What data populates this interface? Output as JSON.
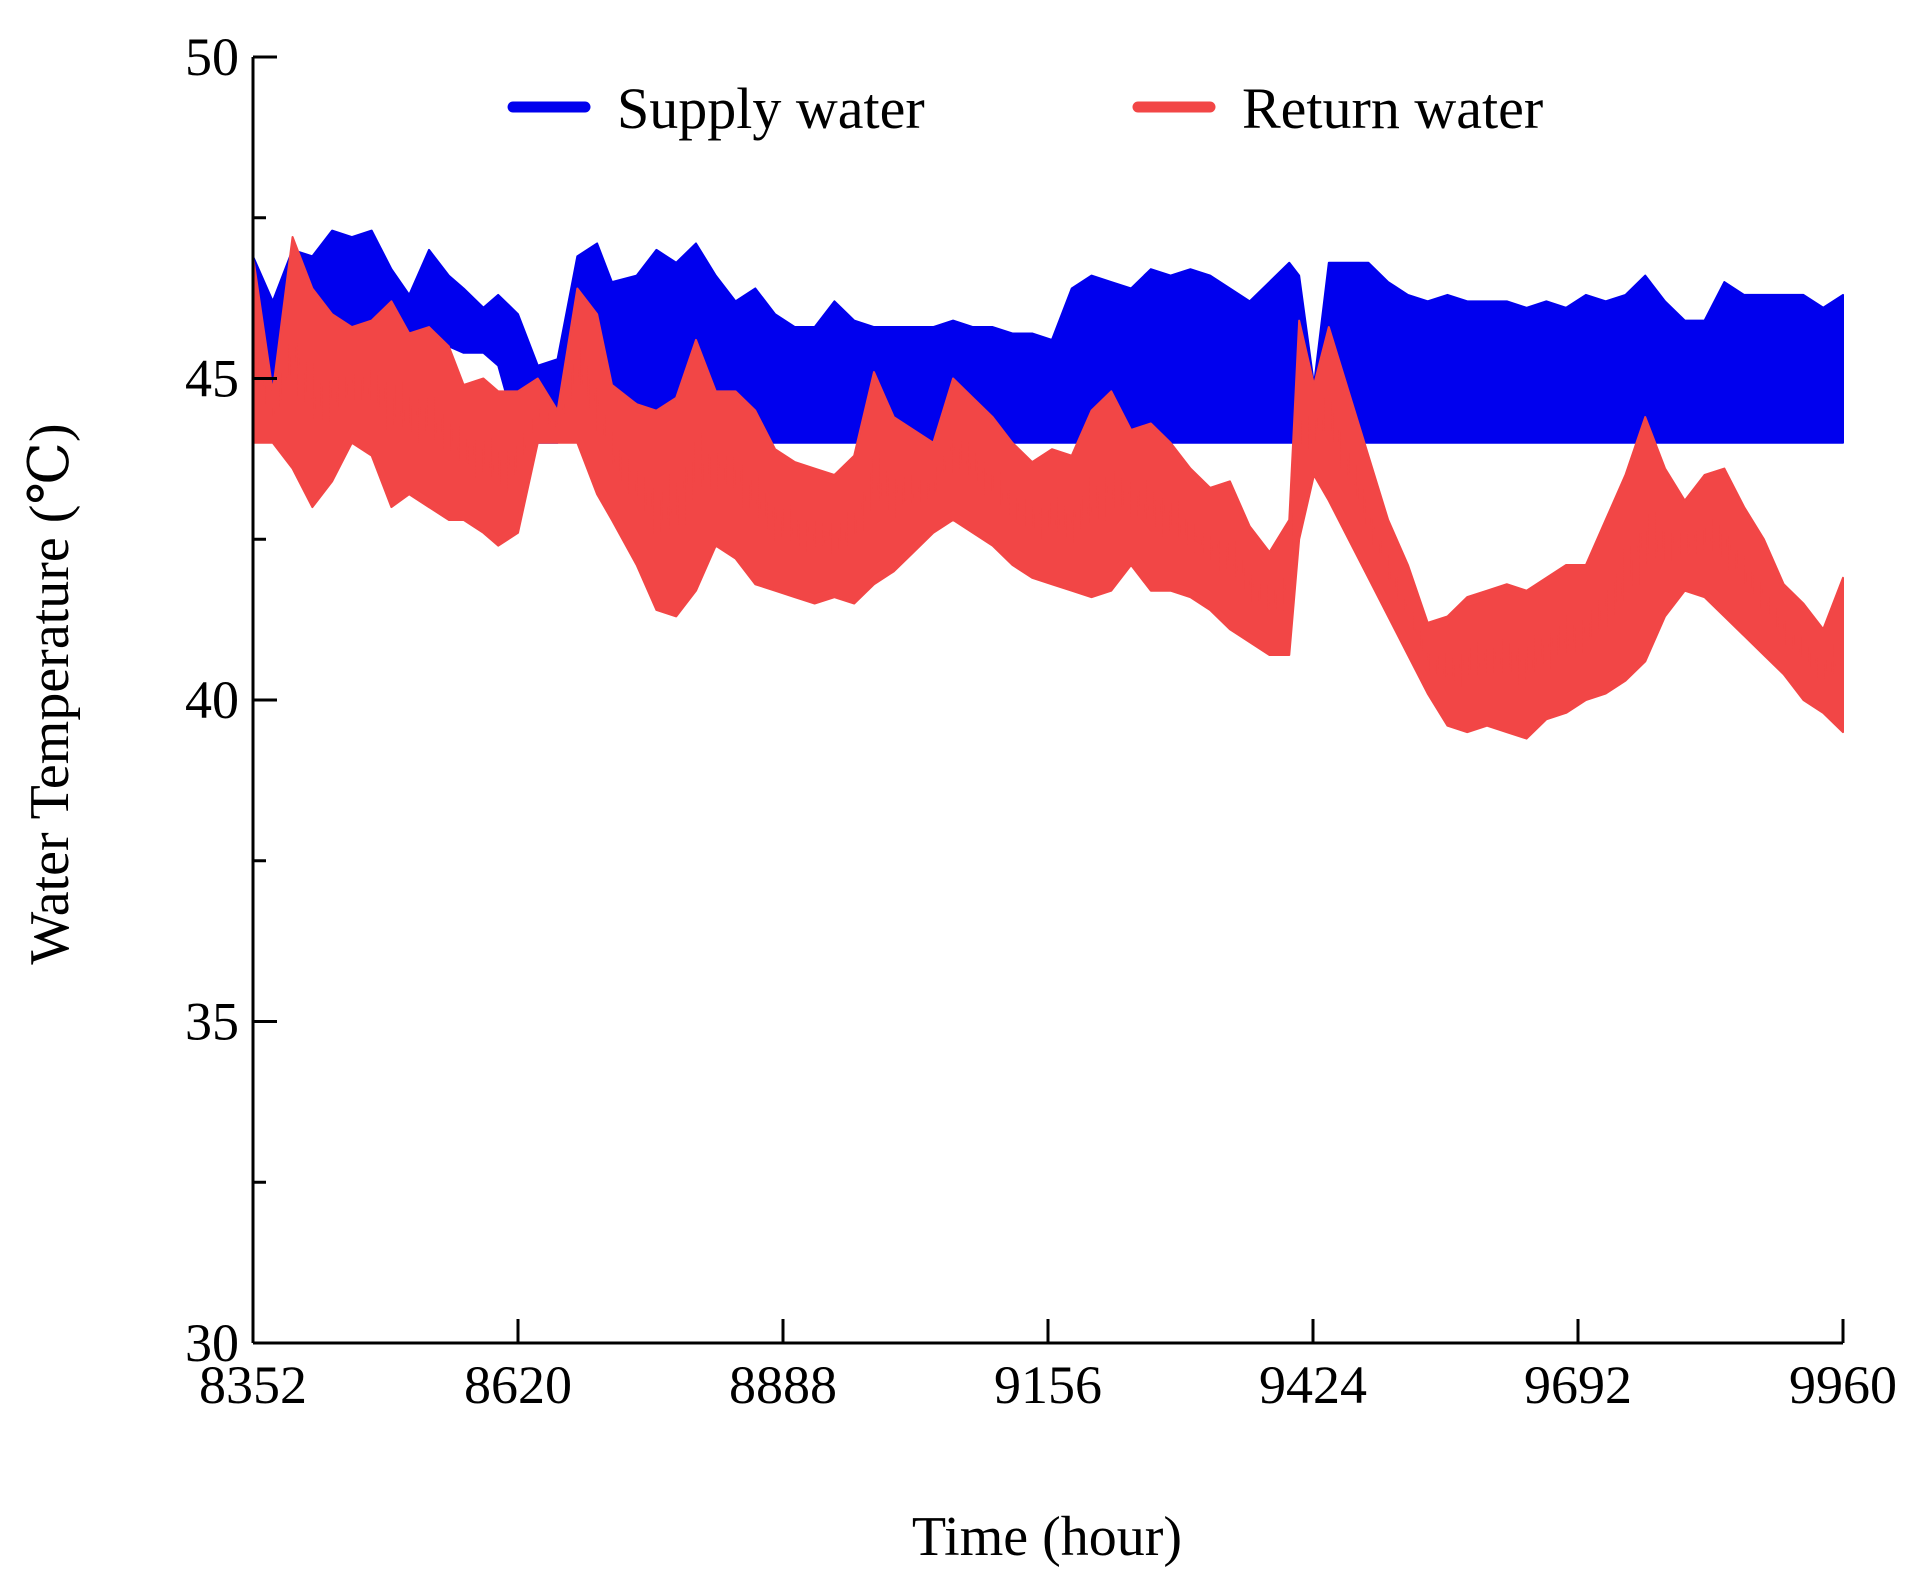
{
  "chart_data": {
    "type": "line",
    "title": "",
    "xlabel": "Time (hour)",
    "ylabel": "Water Temperature (℃)",
    "xlim": [
      8352,
      9960
    ],
    "ylim": [
      30,
      50
    ],
    "x_ticks": [
      8352,
      8620,
      8888,
      9156,
      9424,
      9692,
      9960
    ],
    "x_tick_labels": [
      "8352",
      "8620",
      "8888",
      "9156",
      "9424",
      "9692",
      "9960"
    ],
    "y_ticks": [
      30,
      35,
      40,
      45,
      50
    ],
    "y_tick_labels": [
      "30",
      "35",
      "40",
      "45",
      "50"
    ],
    "y_minor_ticks": [
      32.5,
      37.5,
      42.5,
      47.5
    ],
    "legend_position": "top",
    "series": [
      {
        "name": "Supply water",
        "color": "#0000ee",
        "style": "band",
        "x": [
          8352,
          8372,
          8392,
          8412,
          8432,
          8452,
          8472,
          8492,
          8510,
          8530,
          8550,
          8565,
          8585,
          8600,
          8620,
          8640,
          8660,
          8680,
          8700,
          8715,
          8740,
          8760,
          8780,
          8800,
          8820,
          8840,
          8860,
          8880,
          8900,
          8920,
          8940,
          8960,
          8980,
          9000,
          9020,
          9040,
          9060,
          9080,
          9100,
          9120,
          9140,
          9160,
          9180,
          9200,
          9220,
          9240,
          9260,
          9280,
          9300,
          9320,
          9340,
          9360,
          9380,
          9400,
          9410,
          9425,
          9440,
          9460,
          9480,
          9500,
          9520,
          9540,
          9560,
          9580,
          9600,
          9620,
          9640,
          9660,
          9680,
          9700,
          9720,
          9740,
          9760,
          9780,
          9800,
          9820,
          9840,
          9860,
          9880,
          9900,
          9920,
          9940,
          9960
        ],
        "upper": [
          46.9,
          46.2,
          47.0,
          46.9,
          47.3,
          47.2,
          47.3,
          46.7,
          46.3,
          47.0,
          46.6,
          46.4,
          46.1,
          46.3,
          46.0,
          45.2,
          45.3,
          46.9,
          47.1,
          46.5,
          46.6,
          47.0,
          46.8,
          47.1,
          46.6,
          46.2,
          46.4,
          46.0,
          45.8,
          45.8,
          46.2,
          45.9,
          45.8,
          45.8,
          45.8,
          45.8,
          45.9,
          45.8,
          45.8,
          45.7,
          45.7,
          45.6,
          46.4,
          46.6,
          46.5,
          46.4,
          46.7,
          46.6,
          46.7,
          46.6,
          46.4,
          46.2,
          46.5,
          46.8,
          46.6,
          44.9,
          46.8,
          46.8,
          46.8,
          46.5,
          46.3,
          46.2,
          46.3,
          46.2,
          46.2,
          46.2,
          46.1,
          46.2,
          46.1,
          46.3,
          46.2,
          46.3,
          46.6,
          46.2,
          45.9,
          45.9,
          46.5,
          46.3,
          46.3,
          46.3,
          46.3,
          46.1,
          46.3
        ],
        "lower": [
          44.0,
          44.2,
          44.0,
          43.9,
          44.0,
          44.0,
          44.6,
          45.2,
          45.3,
          45.6,
          45.5,
          45.4,
          45.4,
          45.2,
          44.1,
          44.0,
          44.0,
          44.3,
          44.4,
          44.5,
          44.4,
          44.1,
          44.0,
          44.0,
          44.0,
          44.0,
          44.0,
          44.0,
          44.0,
          44.0,
          44.0,
          44.0,
          44.0,
          44.0,
          44.0,
          44.0,
          44.0,
          44.0,
          44.0,
          44.0,
          44.0,
          44.0,
          44.0,
          44.0,
          44.0,
          44.0,
          44.0,
          44.0,
          44.0,
          44.0,
          44.0,
          44.0,
          44.0,
          44.0,
          44.0,
          44.0,
          44.0,
          44.0,
          44.0,
          44.0,
          44.0,
          44.0,
          44.0,
          44.0,
          44.0,
          44.0,
          44.0,
          44.0,
          44.0,
          44.0,
          44.0,
          44.0,
          44.0,
          44.0,
          44.0,
          44.0,
          44.0,
          44.0,
          44.0,
          44.0,
          44.0,
          44.0,
          44.0
        ]
      },
      {
        "name": "Return water",
        "color": "#f24646",
        "style": "band",
        "x": [
          8352,
          8372,
          8392,
          8412,
          8432,
          8452,
          8472,
          8492,
          8510,
          8530,
          8550,
          8565,
          8585,
          8600,
          8620,
          8640,
          8660,
          8680,
          8700,
          8715,
          8740,
          8760,
          8780,
          8800,
          8820,
          8840,
          8860,
          8880,
          8900,
          8920,
          8940,
          8960,
          8980,
          9000,
          9020,
          9040,
          9060,
          9080,
          9100,
          9120,
          9140,
          9160,
          9180,
          9200,
          9220,
          9240,
          9260,
          9280,
          9300,
          9320,
          9340,
          9360,
          9380,
          9400,
          9410,
          9425,
          9440,
          9460,
          9480,
          9500,
          9520,
          9540,
          9560,
          9580,
          9600,
          9620,
          9640,
          9660,
          9680,
          9700,
          9720,
          9740,
          9760,
          9780,
          9800,
          9820,
          9840,
          9860,
          9880,
          9900,
          9920,
          9940,
          9960
        ],
        "upper": [
          46.9,
          44.8,
          47.2,
          46.4,
          46.0,
          45.8,
          45.9,
          46.2,
          45.7,
          45.8,
          45.5,
          44.9,
          45.0,
          44.8,
          44.8,
          45.0,
          44.5,
          46.4,
          46.0,
          44.9,
          44.6,
          44.5,
          44.7,
          45.6,
          44.8,
          44.8,
          44.5,
          43.9,
          43.7,
          43.6,
          43.5,
          43.8,
          45.1,
          44.4,
          44.2,
          44.0,
          45.0,
          44.7,
          44.4,
          44.0,
          43.7,
          43.9,
          43.8,
          44.5,
          44.8,
          44.2,
          44.3,
          44.0,
          43.6,
          43.3,
          43.4,
          42.7,
          42.3,
          42.8,
          45.9,
          44.9,
          45.8,
          44.8,
          43.8,
          42.8,
          42.1,
          41.2,
          41.3,
          41.6,
          41.7,
          41.8,
          41.7,
          41.9,
          42.1,
          42.1,
          42.8,
          43.5,
          44.4,
          43.6,
          43.1,
          43.5,
          43.6,
          43.0,
          42.5,
          41.8,
          41.5,
          41.1,
          41.9
        ],
        "lower": [
          44.0,
          44.0,
          43.6,
          43.0,
          43.4,
          44.0,
          43.8,
          43.0,
          43.2,
          43.0,
          42.8,
          42.8,
          42.6,
          42.4,
          42.6,
          44.0,
          44.0,
          44.0,
          43.2,
          42.8,
          42.1,
          41.4,
          41.3,
          41.7,
          42.4,
          42.2,
          41.8,
          41.7,
          41.6,
          41.5,
          41.6,
          41.5,
          41.8,
          42.0,
          42.3,
          42.6,
          42.8,
          42.6,
          42.4,
          42.1,
          41.9,
          41.8,
          41.7,
          41.6,
          41.7,
          42.1,
          41.7,
          41.7,
          41.6,
          41.4,
          41.1,
          40.9,
          40.7,
          40.7,
          42.5,
          43.5,
          43.1,
          42.5,
          41.9,
          41.3,
          40.7,
          40.1,
          39.6,
          39.5,
          39.6,
          39.5,
          39.4,
          39.7,
          39.8,
          40.0,
          40.1,
          40.3,
          40.6,
          41.3,
          41.7,
          41.6,
          41.3,
          41.0,
          40.7,
          40.4,
          40.0,
          39.8,
          39.5
        ]
      }
    ]
  }
}
